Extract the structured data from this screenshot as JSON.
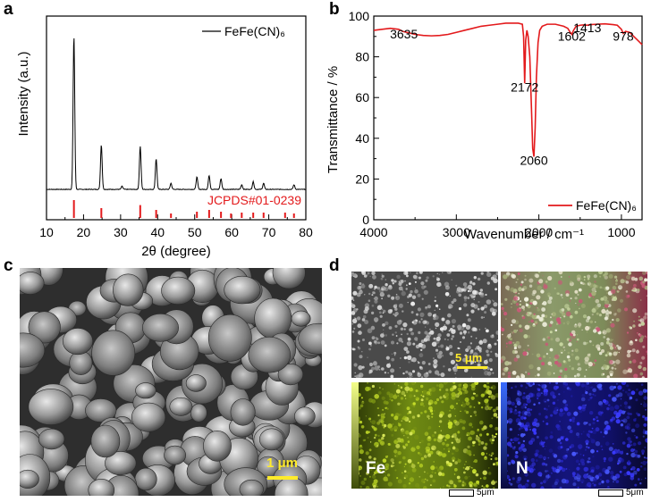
{
  "panels": {
    "a": "a",
    "b": "b",
    "c": "c",
    "d": "d"
  },
  "chart_data": [
    {
      "type": "line",
      "panel": "a",
      "xlabel": "2θ (degree)",
      "ylabel": "Intensity (a.u.)",
      "xlim": [
        10,
        80
      ],
      "xticks": [
        "10",
        "20",
        "30",
        "40",
        "50",
        "60",
        "70",
        "80"
      ],
      "legend": "FeFe(CN)₆",
      "legend_position": "top-right",
      "reference_label": "JCPDS#01-0239",
      "peaks": [
        {
          "x": 17.4,
          "height": 1.0
        },
        {
          "x": 24.8,
          "height": 0.29
        },
        {
          "x": 30.4,
          "height": 0.02
        },
        {
          "x": 35.3,
          "height": 0.28
        },
        {
          "x": 39.6,
          "height": 0.2
        },
        {
          "x": 43.6,
          "height": 0.04
        },
        {
          "x": 50.6,
          "height": 0.08
        },
        {
          "x": 53.9,
          "height": 0.09
        },
        {
          "x": 57.1,
          "height": 0.07
        },
        {
          "x": 62.7,
          "height": 0.03
        },
        {
          "x": 65.8,
          "height": 0.05
        },
        {
          "x": 68.6,
          "height": 0.04
        },
        {
          "x": 76.8,
          "height": 0.03
        }
      ],
      "reference_lines": [
        {
          "x": 17.4,
          "h": 1.0
        },
        {
          "x": 24.8,
          "h": 0.55
        },
        {
          "x": 35.3,
          "h": 0.72
        },
        {
          "x": 39.6,
          "h": 0.45
        },
        {
          "x": 43.6,
          "h": 0.25
        },
        {
          "x": 50.6,
          "h": 0.35
        },
        {
          "x": 53.9,
          "h": 0.45
        },
        {
          "x": 57.1,
          "h": 0.35
        },
        {
          "x": 59.8,
          "h": 0.25
        },
        {
          "x": 62.7,
          "h": 0.3
        },
        {
          "x": 65.8,
          "h": 0.3
        },
        {
          "x": 68.6,
          "h": 0.3
        },
        {
          "x": 74.4,
          "h": 0.3
        },
        {
          "x": 76.8,
          "h": 0.25
        }
      ],
      "line_color": "#000000",
      "reference_color": "#e31a1c"
    },
    {
      "type": "line",
      "panel": "b",
      "xlabel": "Wavenumber / cm⁻¹",
      "ylabel": "Transmittance / %",
      "xlim": [
        4000,
        750
      ],
      "ylim": [
        0,
        100
      ],
      "xticks": [
        "4000",
        "3000",
        "2000",
        "1000"
      ],
      "yticks": [
        "0",
        "20",
        "40",
        "60",
        "80",
        "100"
      ],
      "legend": "FeFe(CN)₆",
      "legend_position": "bottom-right",
      "line_color": "#e31a1c",
      "annotations": [
        {
          "text": "3635",
          "x": 3635,
          "y": 89
        },
        {
          "text": "2172",
          "x": 2172,
          "y": 63
        },
        {
          "text": "2060",
          "x": 2060,
          "y": 27
        },
        {
          "text": "1602",
          "x": 1602,
          "y": 88
        },
        {
          "text": "1413",
          "x": 1413,
          "y": 92
        },
        {
          "text": "978",
          "x": 978,
          "y": 88
        }
      ],
      "series": [
        {
          "x": [
            4000,
            3900,
            3800,
            3700,
            3650,
            3600,
            3500,
            3400,
            3300,
            3200,
            3100,
            3000,
            2900,
            2800,
            2700,
            2600,
            2500,
            2400,
            2300,
            2250,
            2200,
            2185,
            2172,
            2160,
            2145,
            2130,
            2110,
            2090,
            2075,
            2060,
            2045,
            2030,
            2010,
            1990,
            1960,
            1900,
            1800,
            1700,
            1650,
            1620,
            1602,
            1580,
            1550,
            1500,
            1450,
            1413,
            1380,
            1300,
            1200,
            1100,
            1050,
            1000,
            978,
            950,
            900,
            850,
            800,
            750
          ],
          "y": [
            93,
            93.5,
            94,
            93.5,
            92.5,
            92,
            91,
            90.5,
            90.3,
            90.5,
            91,
            92,
            93,
            94,
            95,
            95.5,
            96,
            96.5,
            96.5,
            96.5,
            96,
            90,
            67,
            88,
            93,
            90,
            80,
            55,
            35,
            31,
            45,
            70,
            87,
            93,
            95,
            96,
            96,
            95,
            94,
            92,
            91,
            93,
            95,
            95.5,
            95.7,
            95.5,
            95.8,
            96,
            96.2,
            95.8,
            95.5,
            93.5,
            91.5,
            92.5,
            92,
            90,
            88,
            86
          ]
        }
      ]
    }
  ],
  "micrographs": {
    "c_scale": "1 μm",
    "d_scale": "5 μm",
    "fe_label": "Fe",
    "n_label": "N",
    "bottom_scale_left": "5μm",
    "bottom_scale_right": "5μm"
  }
}
